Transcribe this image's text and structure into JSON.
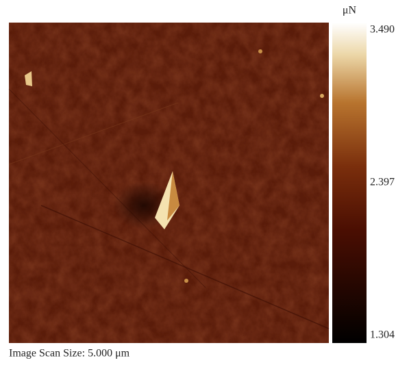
{
  "colorbar": {
    "unit": "μN",
    "ticks": [
      {
        "value": 3.49,
        "label": "3.490"
      },
      {
        "value": 2.397,
        "label": "2.397"
      },
      {
        "value": 1.304,
        "label": "1.304"
      }
    ]
  },
  "caption": "Image Scan Size: 5.000 μm"
}
